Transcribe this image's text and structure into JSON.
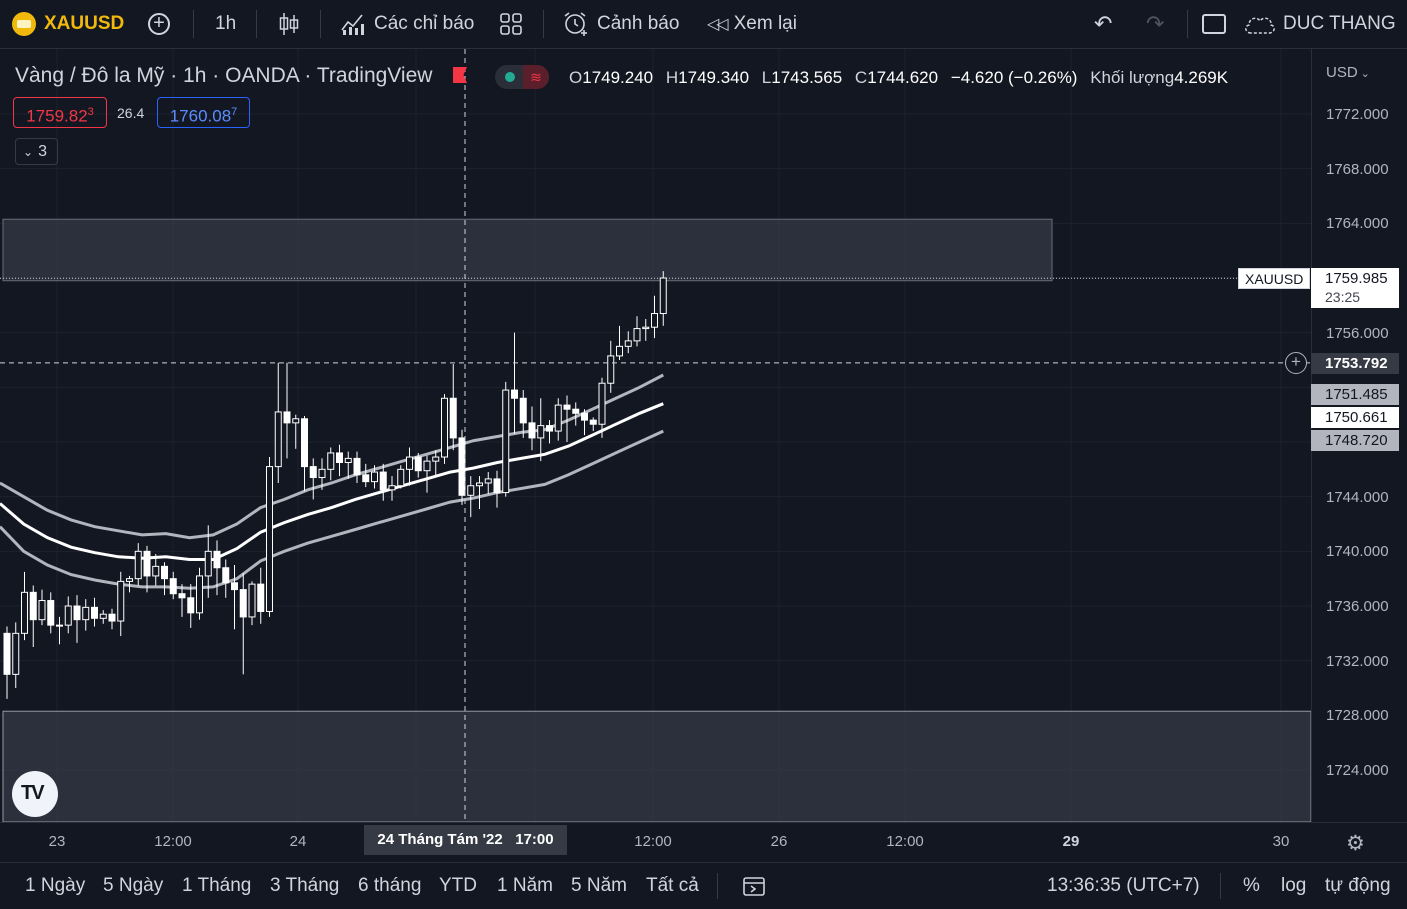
{
  "toolbar": {
    "symbol": "XAUUSD",
    "interval": "1h",
    "indicators_label": "Các chỉ báo",
    "alerts_label": "Cảnh báo",
    "replay_label": "Xem lại",
    "user_name": "DUC THANG"
  },
  "legend": {
    "title": "Vàng / Đô la Mỹ · 1h · OANDA · TradingView",
    "o_label": "O",
    "o": "1749.240",
    "h_label": "H",
    "h": "1749.340",
    "l_label": "L",
    "l": "1743.565",
    "c_label": "C",
    "c": "1744.620",
    "change": "−4.620 (−0.26%)",
    "volume_label": "Khối lượng",
    "volume": "4.269K",
    "sell_price": "1759.82",
    "sell_sup": "3",
    "spread": "26.4",
    "buy_price": "1760.08",
    "buy_sup": "7",
    "indicators_count": "3"
  },
  "price_axis": {
    "currency": "USD",
    "ticks": [
      "1772.000",
      "1768.000",
      "1764.000",
      "1756.000",
      "1744.000",
      "1740.000",
      "1736.000",
      "1732.000",
      "1728.000",
      "1724.000"
    ],
    "current_symbol": "XAUUSD",
    "current_price": "1759.985",
    "countdown": "23:25",
    "crosshair_price": "1753.792",
    "ma_labels": [
      "1751.485",
      "1750.661",
      "1748.720"
    ]
  },
  "time_axis": {
    "ticks": [
      "23",
      "12:00",
      "24",
      "26",
      "12:00",
      "29",
      "30"
    ],
    "crosshair_label": "24 Tháng Tám '22   17:00"
  },
  "bottom_bar": {
    "ranges": [
      "1 Ngày",
      "5 Ngày",
      "1 Tháng",
      "3 Tháng",
      "6 tháng",
      "YTD",
      "1 Năm",
      "5 Năm",
      "Tất cả"
    ],
    "clock": "13:36:35 (UTC+7)",
    "percent": "%",
    "log": "log",
    "auto": "tự động"
  },
  "colors": {
    "background": "#131722",
    "candle": "#ffffff",
    "sell": "#f23645",
    "buy": "#2962ff",
    "zone": "#363a45"
  },
  "chart_data": {
    "type": "candlestick",
    "symbol": "XAUUSD",
    "interval": "1h",
    "ylim": [
      1721,
      1775
    ],
    "candles": [
      [
        1734.0,
        1734.5,
        1729.2,
        1731.0
      ],
      [
        1731.0,
        1734.8,
        1730.0,
        1734.0
      ],
      [
        1734.0,
        1738.5,
        1733.5,
        1737.0
      ],
      [
        1737.0,
        1737.5,
        1733.0,
        1735.0
      ],
      [
        1735.0,
        1737.2,
        1734.6,
        1736.4
      ],
      [
        1736.4,
        1737.0,
        1734.0,
        1734.6
      ],
      [
        1734.6,
        1735.2,
        1733.2,
        1734.6
      ],
      [
        1734.6,
        1736.7,
        1734.0,
        1736.0
      ],
      [
        1736.0,
        1736.8,
        1733.3,
        1735.0
      ],
      [
        1735.0,
        1736.5,
        1734.2,
        1735.9
      ],
      [
        1735.9,
        1736.6,
        1734.5,
        1735.1
      ],
      [
        1735.1,
        1735.7,
        1734.7,
        1735.4
      ],
      [
        1735.4,
        1735.8,
        1734.3,
        1734.9
      ],
      [
        1734.9,
        1738.5,
        1733.8,
        1737.8
      ],
      [
        1737.8,
        1738.2,
        1737.0,
        1738.0
      ],
      [
        1738.0,
        1740.6,
        1737.5,
        1740.0
      ],
      [
        1740.0,
        1740.4,
        1737.0,
        1738.2
      ],
      [
        1738.2,
        1739.8,
        1737.5,
        1738.9
      ],
      [
        1738.9,
        1739.2,
        1736.8,
        1738.0
      ],
      [
        1738.0,
        1738.5,
        1736.5,
        1736.9
      ],
      [
        1736.9,
        1737.6,
        1735.2,
        1736.6
      ],
      [
        1736.6,
        1737.6,
        1734.4,
        1735.5
      ],
      [
        1735.5,
        1738.8,
        1735.0,
        1738.2
      ],
      [
        1738.2,
        1741.9,
        1736.6,
        1740.0
      ],
      [
        1740.0,
        1740.8,
        1736.8,
        1738.8
      ],
      [
        1738.8,
        1739.4,
        1736.6,
        1737.7
      ],
      [
        1737.7,
        1739.0,
        1734.3,
        1737.2
      ],
      [
        1737.2,
        1738.4,
        1731.0,
        1735.2
      ],
      [
        1735.2,
        1737.8,
        1734.6,
        1737.6
      ],
      [
        1737.6,
        1738.8,
        1734.7,
        1735.6
      ],
      [
        1735.6,
        1746.9,
        1735.2,
        1746.2
      ],
      [
        1746.2,
        1753.8,
        1745.0,
        1750.2
      ],
      [
        1750.2,
        1753.8,
        1746.8,
        1749.4
      ],
      [
        1749.4,
        1750.0,
        1747.5,
        1749.7
      ],
      [
        1749.7,
        1749.9,
        1744.4,
        1746.2
      ],
      [
        1746.2,
        1746.8,
        1743.8,
        1745.4
      ],
      [
        1745.4,
        1746.8,
        1744.5,
        1746.0
      ],
      [
        1746.0,
        1747.6,
        1745.2,
        1747.2
      ],
      [
        1747.2,
        1747.8,
        1745.5,
        1746.5
      ],
      [
        1746.5,
        1747.3,
        1745.3,
        1746.8
      ],
      [
        1746.8,
        1747.3,
        1745.0,
        1745.6
      ],
      [
        1745.6,
        1746.4,
        1744.7,
        1745.1
      ],
      [
        1745.1,
        1746.3,
        1744.6,
        1745.8
      ],
      [
        1745.8,
        1746.4,
        1743.7,
        1744.5
      ],
      [
        1744.5,
        1745.5,
        1743.7,
        1744.8
      ],
      [
        1744.8,
        1746.3,
        1744.6,
        1746.0
      ],
      [
        1746.0,
        1747.6,
        1744.8,
        1746.9
      ],
      [
        1746.9,
        1747.2,
        1745.4,
        1745.9
      ],
      [
        1745.9,
        1747.0,
        1744.3,
        1746.6
      ],
      [
        1746.6,
        1747.4,
        1745.5,
        1746.9
      ],
      [
        1746.9,
        1751.5,
        1746.4,
        1751.2
      ],
      [
        1751.2,
        1753.7,
        1747.4,
        1748.3
      ],
      [
        1748.3,
        1748.9,
        1743.4,
        1744.1
      ],
      [
        1744.1,
        1745.5,
        1742.5,
        1744.8
      ],
      [
        1744.8,
        1745.5,
        1743.1,
        1745.0
      ],
      [
        1745.0,
        1745.8,
        1744.2,
        1745.3
      ],
      [
        1745.3,
        1745.9,
        1743.2,
        1744.3
      ],
      [
        1744.3,
        1752.4,
        1744.0,
        1751.8
      ],
      [
        1751.8,
        1756.0,
        1748.6,
        1751.2
      ],
      [
        1751.2,
        1751.8,
        1748.3,
        1749.4
      ],
      [
        1749.4,
        1750.6,
        1747.4,
        1748.3
      ],
      [
        1748.3,
        1751.2,
        1746.6,
        1749.2
      ],
      [
        1749.2,
        1749.6,
        1747.9,
        1748.8
      ],
      [
        1748.8,
        1751.2,
        1748.1,
        1750.7
      ],
      [
        1750.7,
        1751.4,
        1748.0,
        1750.4
      ],
      [
        1750.4,
        1750.9,
        1749.2,
        1750.1
      ],
      [
        1750.1,
        1750.4,
        1748.5,
        1749.6
      ],
      [
        1749.6,
        1749.8,
        1748.8,
        1749.3
      ],
      [
        1749.3,
        1752.7,
        1748.3,
        1752.3
      ],
      [
        1752.3,
        1755.4,
        1751.6,
        1754.3
      ],
      [
        1754.3,
        1756.5,
        1754.0,
        1755.0
      ],
      [
        1755.0,
        1756.1,
        1754.5,
        1755.4
      ],
      [
        1755.4,
        1757.2,
        1755.0,
        1756.3
      ],
      [
        1756.3,
        1757.0,
        1755.4,
        1756.4
      ],
      [
        1756.4,
        1758.7,
        1755.6,
        1757.4
      ],
      [
        1757.4,
        1760.5,
        1756.5,
        1760.0
      ]
    ],
    "bands": {
      "upper": [
        1745.0,
        1744.0,
        1743.0,
        1742.3,
        1741.8,
        1741.5,
        1741.2,
        1741.3,
        1741.0,
        1741.2,
        1742.0,
        1743.2,
        1743.8,
        1744.5,
        1745.0,
        1745.6,
        1746.1,
        1746.6,
        1747.1,
        1747.6,
        1748.1,
        1748.4,
        1748.7,
        1748.9,
        1749.6,
        1750.4,
        1751.2,
        1752.0,
        1752.9
      ],
      "middle": [
        1743.5,
        1742.0,
        1741.0,
        1740.3,
        1739.9,
        1739.6,
        1739.5,
        1739.6,
        1739.4,
        1739.4,
        1740.2,
        1741.4,
        1742.1,
        1742.7,
        1743.2,
        1743.8,
        1744.3,
        1744.8,
        1745.3,
        1745.8,
        1746.1,
        1746.5,
        1746.8,
        1747.1,
        1747.7,
        1748.5,
        1749.3,
        1750.1,
        1750.8
      ],
      "lower": [
        1741.8,
        1740.0,
        1739.0,
        1738.3,
        1737.9,
        1737.6,
        1737.4,
        1737.4,
        1737.3,
        1737.4,
        1738.0,
        1739.3,
        1740.0,
        1740.6,
        1741.1,
        1741.6,
        1742.1,
        1742.6,
        1743.1,
        1743.6,
        1743.9,
        1744.3,
        1744.6,
        1744.9,
        1745.6,
        1746.4,
        1747.2,
        1748.0,
        1748.8
      ]
    },
    "zone_top": [
      1764.3,
      1759.8
    ],
    "zone_bottom_level": 1728.3,
    "crosshair_price": 1753.792,
    "current_price": 1759.985
  }
}
